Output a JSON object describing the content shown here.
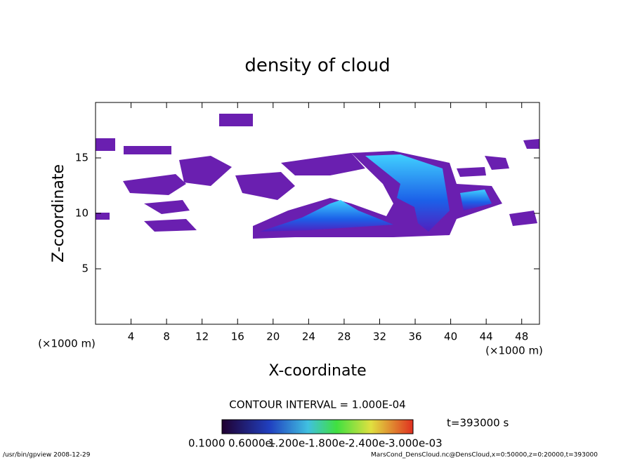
{
  "chart_data": {
    "type": "contour",
    "title": "density of cloud",
    "x_label": "X-coordinate",
    "y_label": "Z-coordinate",
    "x_unit": "(×1000 m)",
    "y_unit": "(×1000 m)",
    "xlim": [
      0,
      50
    ],
    "ylim": [
      0,
      20
    ],
    "xticks": [
      4,
      8,
      12,
      16,
      20,
      24,
      28,
      32,
      36,
      40,
      44,
      48
    ],
    "yticks": [
      5,
      10,
      15
    ],
    "contour_note": "CONTOUR INTERVAL = 1.000E-04",
    "time_label": "t=393000 s",
    "colorbar_labels": [
      "0.1000",
      "0.6000e-",
      "1.200e-",
      "1.800e-",
      "2.400e-",
      "3.000e-03"
    ],
    "footer_left": "/usr/bin/gpview   2008-12-29",
    "footer_right": "MarsCond_DensCloud.nc@DensCloud,x=0:50000,z=0:20000,t=393000"
  }
}
